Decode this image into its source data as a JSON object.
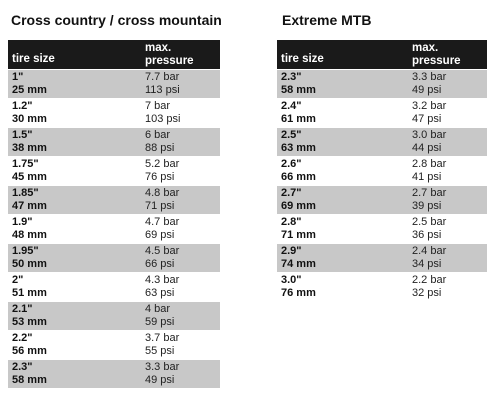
{
  "colors": {
    "header_bg": "#1a1a1a",
    "header_text": "#ffffff",
    "shaded_row": "#c8c8c8"
  },
  "left": {
    "title": "Cross country / cross mountain",
    "header": {
      "col1": "tire size",
      "col2_line1": "max.",
      "col2_line2": "pressure"
    },
    "rows": [
      {
        "size_in": "1\"",
        "size_mm": "25 mm",
        "bar": "7.7 bar",
        "psi": "113 psi",
        "shaded": true
      },
      {
        "size_in": "1.2\"",
        "size_mm": "30 mm",
        "bar": "7 bar",
        "psi": "103 psi",
        "shaded": false
      },
      {
        "size_in": "1.5\"",
        "size_mm": "38 mm",
        "bar": "6 bar",
        "psi": "88 psi",
        "shaded": true
      },
      {
        "size_in": "1.75\"",
        "size_mm": "45 mm",
        "bar": "5.2 bar",
        "psi": "76 psi",
        "shaded": false
      },
      {
        "size_in": "1.85\"",
        "size_mm": "47 mm",
        "bar": "4.8 bar",
        "psi": "71 psi",
        "shaded": true
      },
      {
        "size_in": "1.9\"",
        "size_mm": "48 mm",
        "bar": "4.7 bar",
        "psi": "69 psi",
        "shaded": false
      },
      {
        "size_in": "1.95\"",
        "size_mm": "50 mm",
        "bar": "4.5 bar",
        "psi": "66 psi",
        "shaded": true
      },
      {
        "size_in": "2\"",
        "size_mm": "51 mm",
        "bar": "4.3 bar",
        "psi": "63 psi",
        "shaded": false
      },
      {
        "size_in": "2.1\"",
        "size_mm": "53 mm",
        "bar": "4 bar",
        "psi": "59 psi",
        "shaded": true
      },
      {
        "size_in": "2.2\"",
        "size_mm": "56 mm",
        "bar": "3.7 bar",
        "psi": "55 psi",
        "shaded": false
      },
      {
        "size_in": "2.3\"",
        "size_mm": "58 mm",
        "bar": "3.3 bar",
        "psi": "49 psi",
        "shaded": true
      }
    ]
  },
  "right": {
    "title": "Extreme MTB",
    "header": {
      "col1": "tire size",
      "col2_line1": "max.",
      "col2_line2": "pressure"
    },
    "rows": [
      {
        "size_in": "2.3\"",
        "size_mm": "58 mm",
        "bar": "3.3 bar",
        "psi": "49 psi",
        "shaded": true
      },
      {
        "size_in": "2.4\"",
        "size_mm": "61 mm",
        "bar": "3.2 bar",
        "psi": "47 psi",
        "shaded": false
      },
      {
        "size_in": "2.5\"",
        "size_mm": "63 mm",
        "bar": "3.0 bar",
        "psi": "44 psi",
        "shaded": true
      },
      {
        "size_in": "2.6\"",
        "size_mm": "66 mm",
        "bar": "2.8 bar",
        "psi": "41 psi",
        "shaded": false
      },
      {
        "size_in": "2.7\"",
        "size_mm": "69 mm",
        "bar": "2.7 bar",
        "psi": "39 psi",
        "shaded": true
      },
      {
        "size_in": "2.8\"",
        "size_mm": "71 mm",
        "bar": "2.5 bar",
        "psi": "36 psi",
        "shaded": false
      },
      {
        "size_in": "2.9\"",
        "size_mm": "74 mm",
        "bar": "2.4 bar",
        "psi": "34 psi",
        "shaded": true
      },
      {
        "size_in": "3.0\"",
        "size_mm": "76 mm",
        "bar": "2.2 bar",
        "psi": "32 psi",
        "shaded": false
      }
    ]
  }
}
